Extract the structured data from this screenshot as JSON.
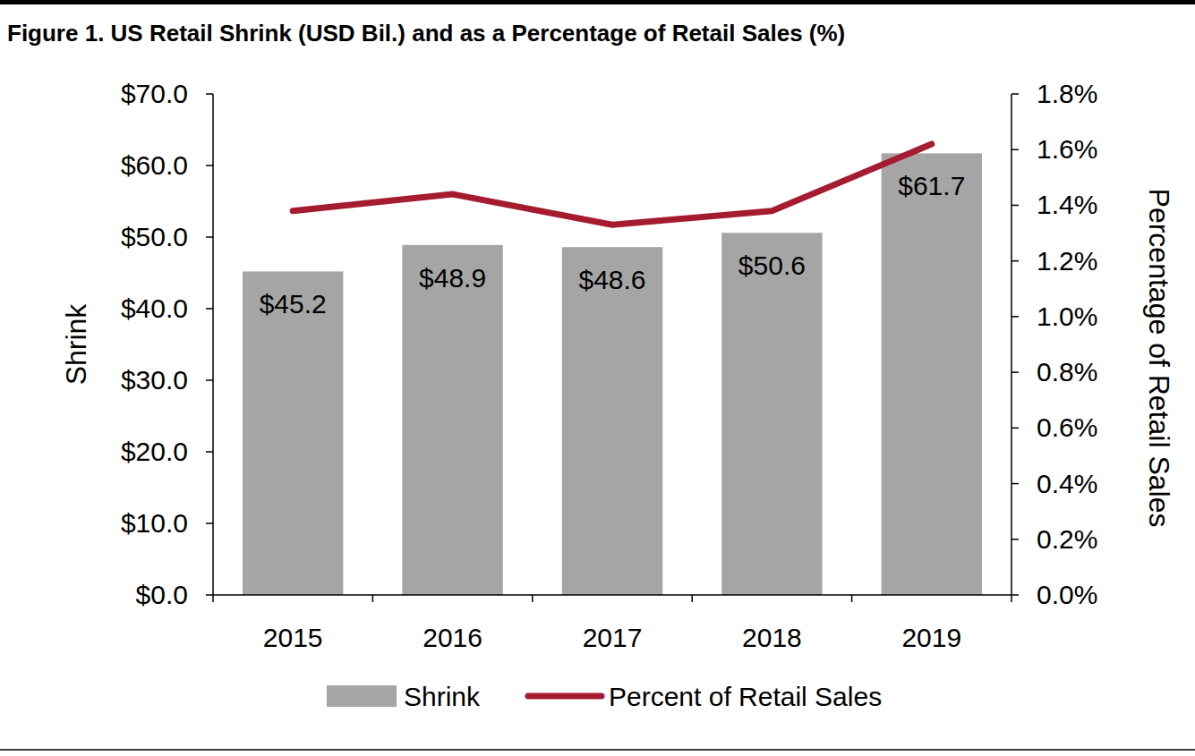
{
  "chart_data": {
    "type": "bar",
    "title": "Figure 1. US Retail Shrink (USD Bil.) and as a Percentage of Retail Sales (%)",
    "y_label": "Shrink",
    "y2_label": "Percentage of Retail Sales",
    "categories": [
      "2015",
      "2016",
      "2017",
      "2018",
      "2019"
    ],
    "series": [
      {
        "name": "Shrink",
        "type": "bar",
        "color": "#a5a5a5",
        "data_labels": true,
        "values": [
          45.2,
          48.9,
          48.6,
          50.6,
          61.7
        ],
        "value_labels": [
          "$45.2",
          "$48.9",
          "$48.6",
          "$50.6",
          "$61.7"
        ]
      },
      {
        "name": "Percent of Retail Sales",
        "type": "line",
        "color": "#a51c30",
        "axis": "y2",
        "values": [
          1.38,
          1.44,
          1.33,
          1.38,
          1.62
        ]
      }
    ],
    "ylim": [
      0,
      70
    ],
    "yticks": [
      {
        "value": 0,
        "label": "$0.0"
      },
      {
        "value": 10,
        "label": "$10.0"
      },
      {
        "value": 20,
        "label": "$20.0"
      },
      {
        "value": 30,
        "label": "$30.0"
      },
      {
        "value": 40,
        "label": "$40.0"
      },
      {
        "value": 50,
        "label": "$50.0"
      },
      {
        "value": 60,
        "label": "$60.0"
      },
      {
        "value": 70,
        "label": "$70.0"
      }
    ],
    "y2lim": [
      0,
      1.8
    ],
    "y2ticks": [
      {
        "value": 0,
        "label": "0.0%"
      },
      {
        "value": 0.2,
        "label": "0.2%"
      },
      {
        "value": 0.4,
        "label": "0.4%"
      },
      {
        "value": 0.6,
        "label": "0.6%"
      },
      {
        "value": 0.8,
        "label": "0.8%"
      },
      {
        "value": 1.0,
        "label": "1.0%"
      },
      {
        "value": 1.2,
        "label": "1.2%"
      },
      {
        "value": 1.4,
        "label": "1.4%"
      },
      {
        "value": 1.6,
        "label": "1.6%"
      },
      {
        "value": 1.8,
        "label": "1.8%"
      }
    ],
    "grid": false,
    "legend": "bottom"
  }
}
